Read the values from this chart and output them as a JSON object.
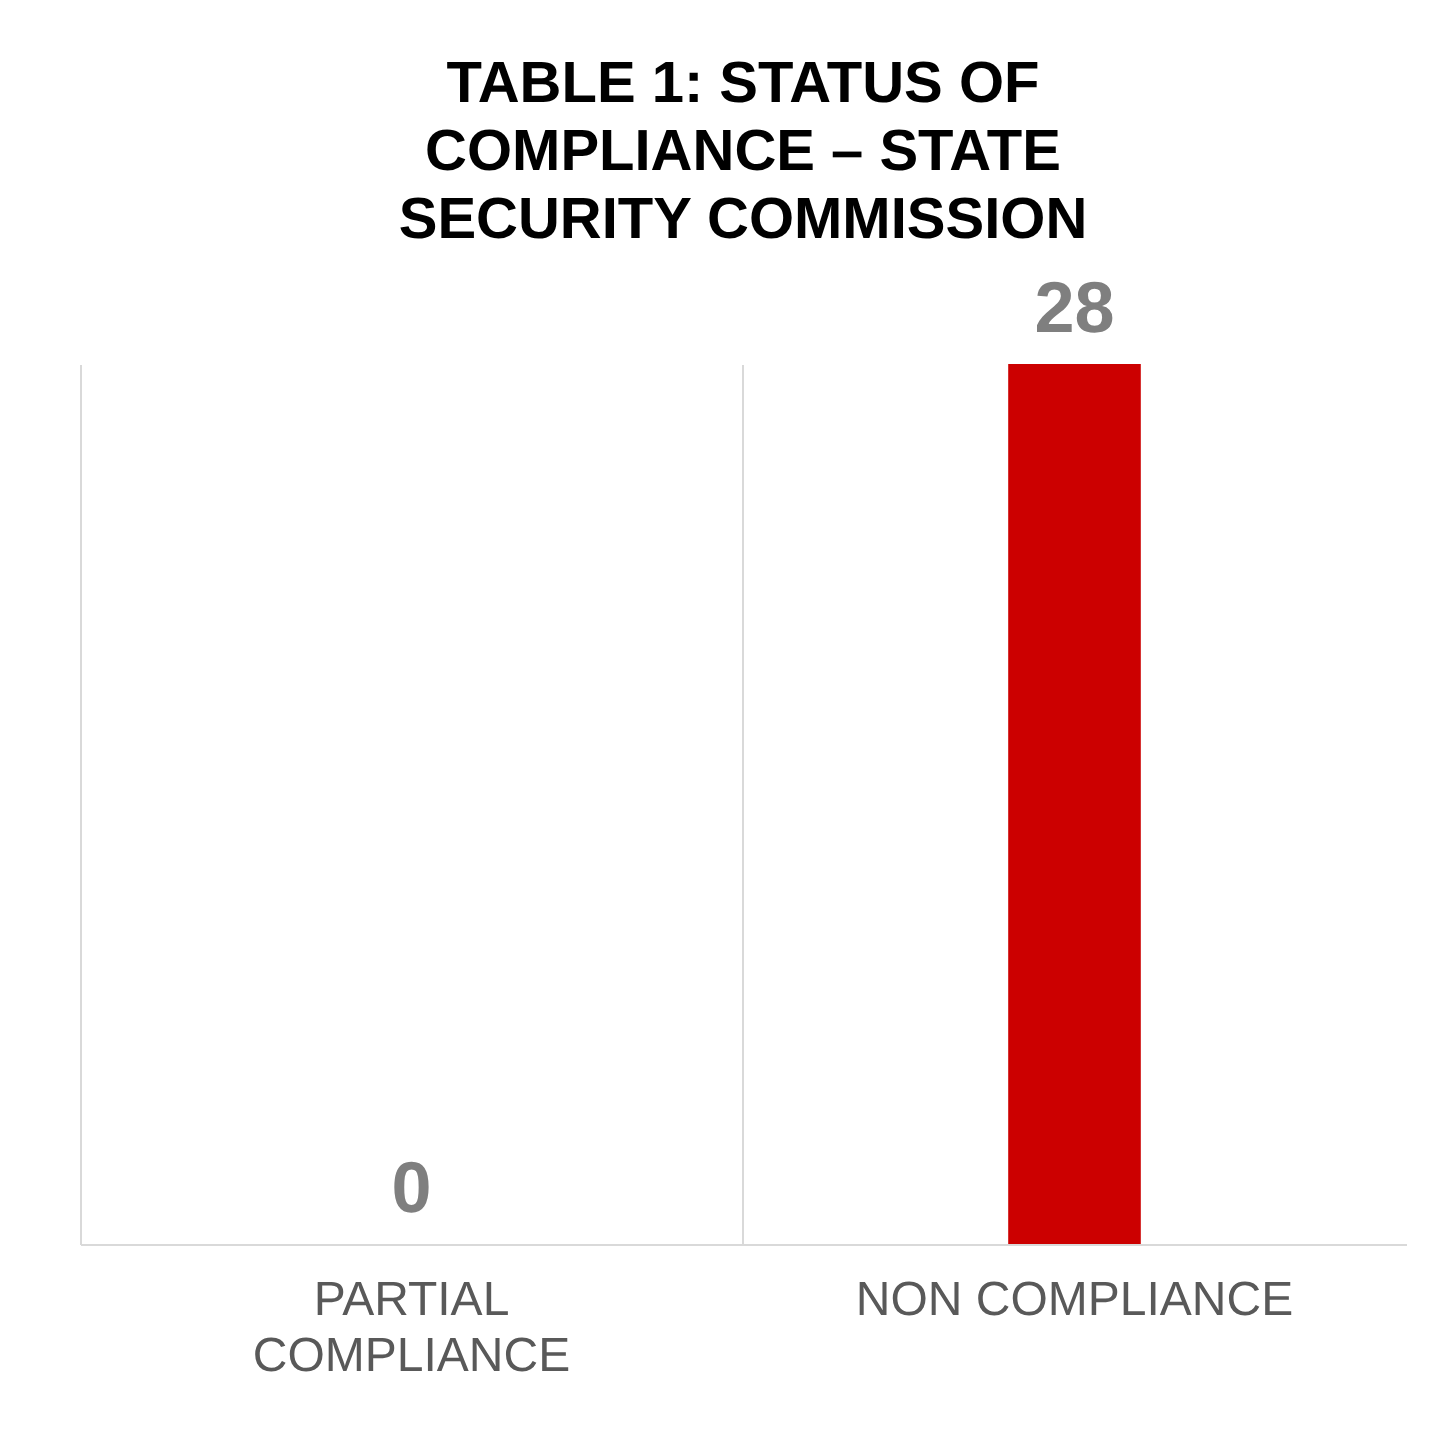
{
  "chart_data": {
    "type": "bar",
    "title": "TABLE 1: STATUS OF COMPLIANCE – STATE SECURITY COMMISSION",
    "categories": [
      "PARTIAL COMPLIANCE",
      "NON COMPLIANCE"
    ],
    "values": [
      0,
      28
    ],
    "color": "#cc0000",
    "data_labels": true,
    "grid": "x"
  }
}
